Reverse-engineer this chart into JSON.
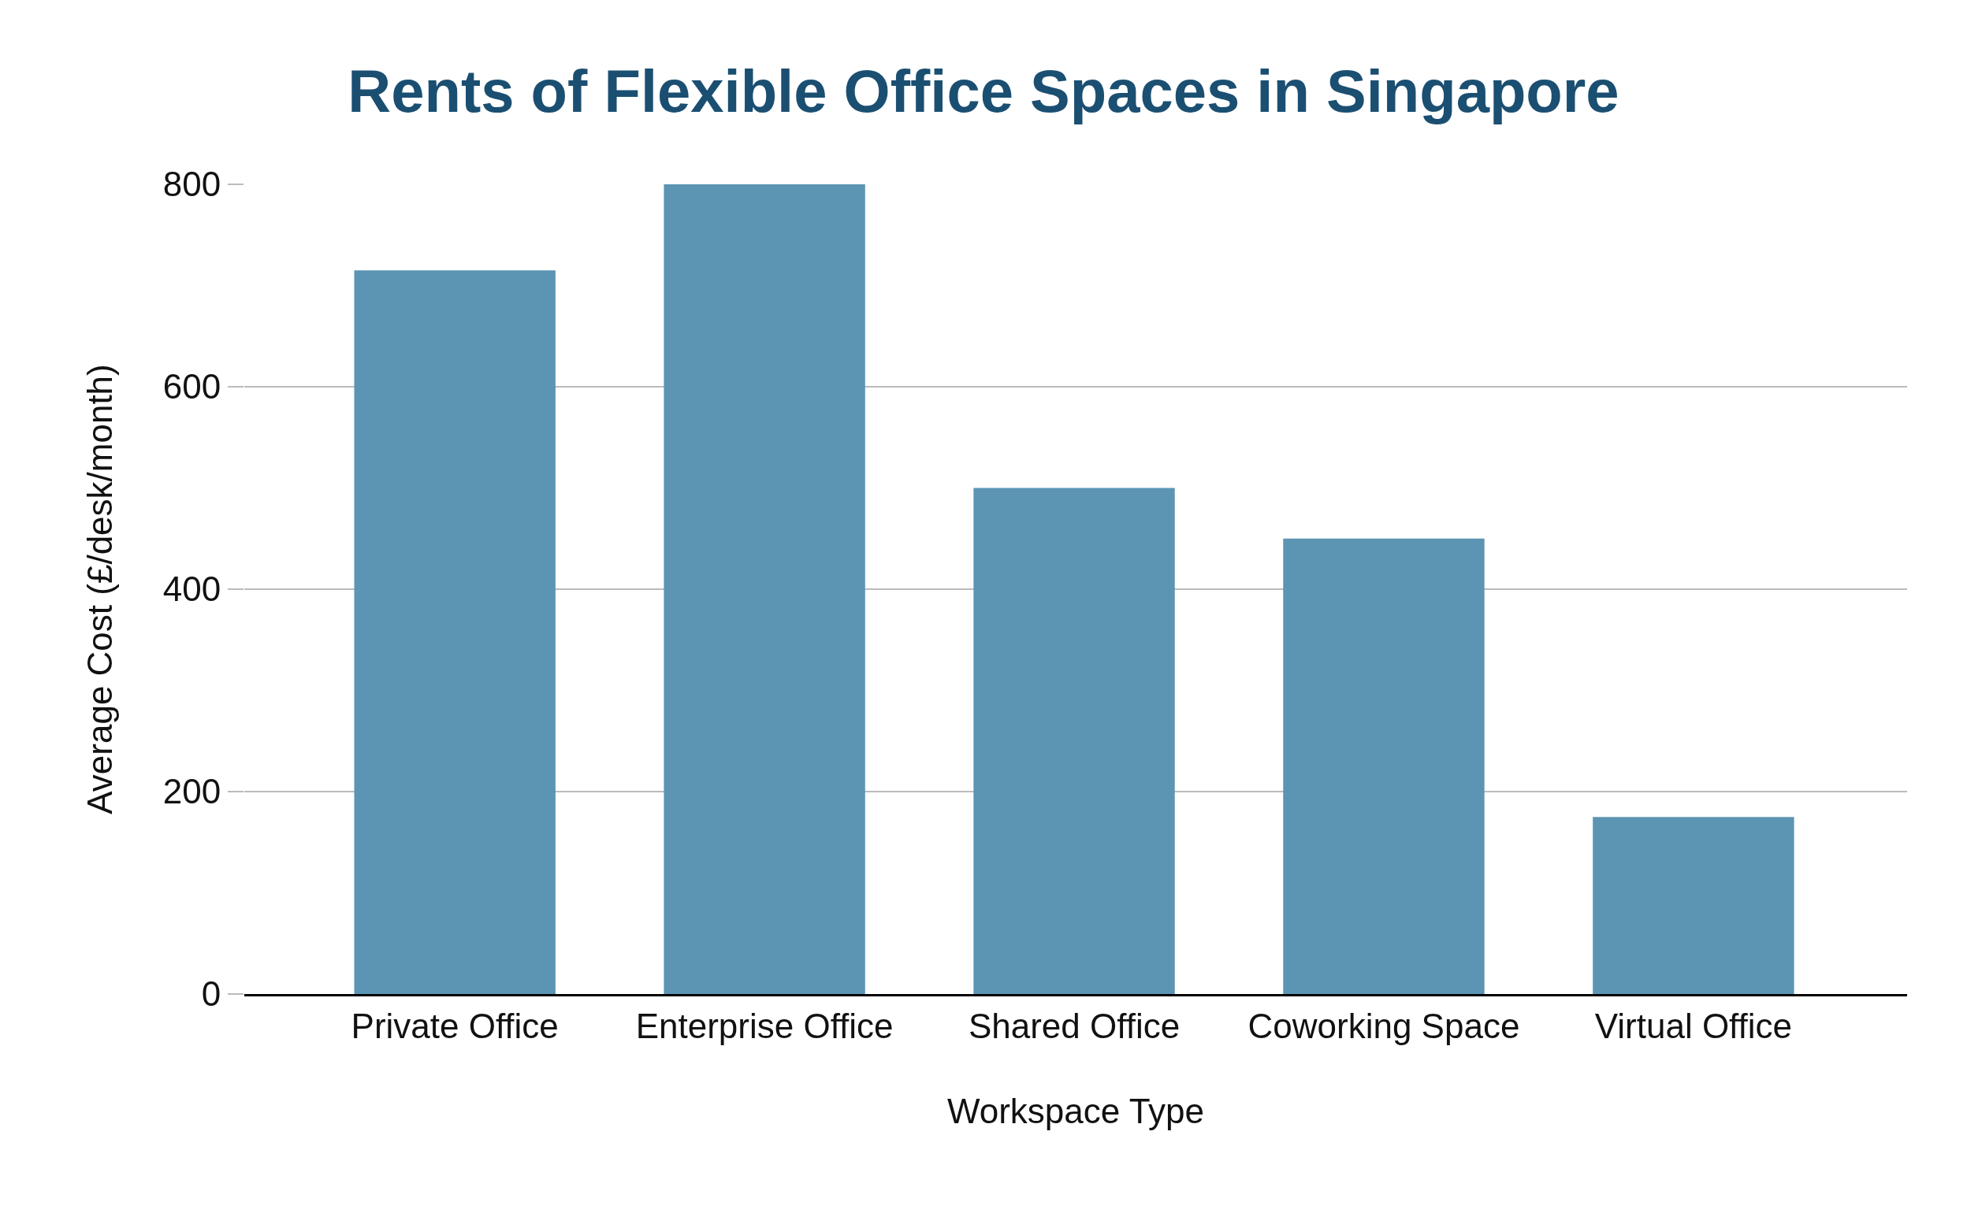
{
  "chart_data": {
    "type": "bar",
    "title": "Rents of Flexible Office Spaces in Singapore",
    "xlabel": "Workspace Type",
    "ylabel": "Average Cost (£/desk/month)",
    "categories": [
      "Private Office",
      "Enterprise Office",
      "Shared Office",
      "Coworking Space",
      "Virtual Office"
    ],
    "values": [
      715,
      800,
      500,
      450,
      175
    ],
    "color": "#5b95b3",
    "ylim": [
      0,
      800
    ],
    "yticks": [
      0,
      200,
      400,
      600,
      800
    ],
    "grid": "y"
  }
}
